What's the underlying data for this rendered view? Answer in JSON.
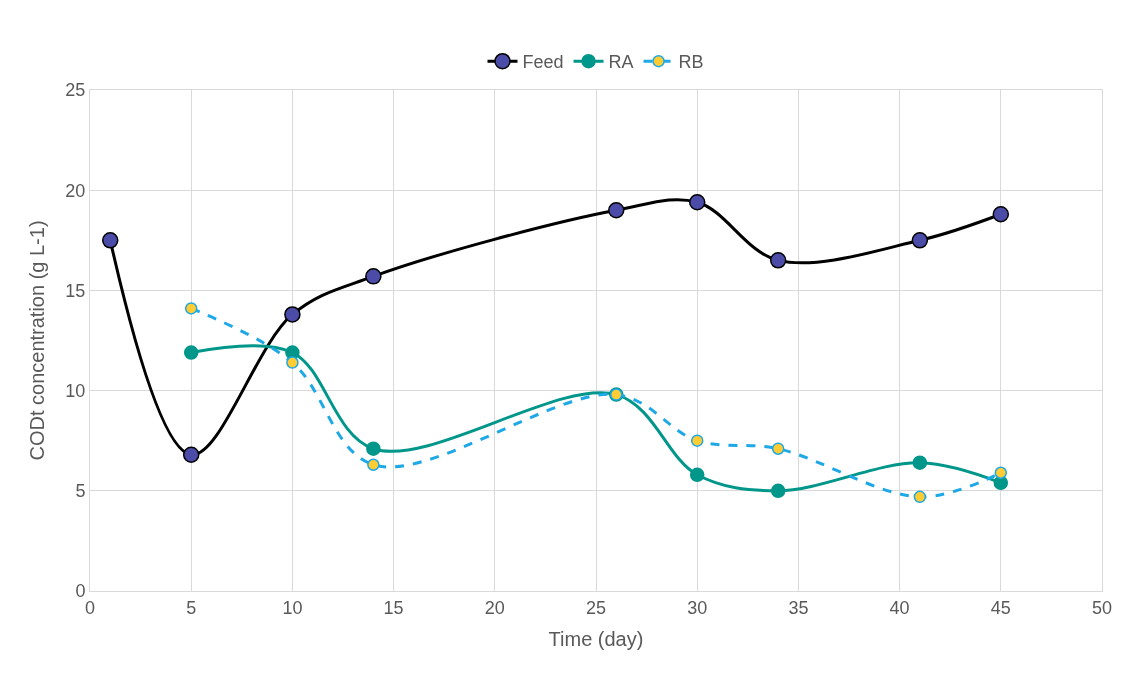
{
  "chart_data": {
    "type": "line",
    "xlabel": "Time (day)",
    "ylabel": "CODt concentration (g L-1)",
    "xlim": [
      0,
      50
    ],
    "xticks": [
      0,
      5,
      10,
      15,
      20,
      25,
      30,
      35,
      40,
      45,
      50
    ],
    "ylim": [
      0,
      25
    ],
    "yticks": [
      0,
      5,
      10,
      15,
      20,
      25
    ],
    "grid": true,
    "legend": "top",
    "marker": "circle",
    "series": [
      {
        "name": "Feed",
        "color": "#000000",
        "line_style": "solid",
        "x": [
          1,
          5,
          10,
          14,
          26,
          30,
          34,
          41,
          45
        ],
        "values": [
          17.5,
          6.8,
          13.8,
          15.7,
          19.0,
          19.4,
          16.5,
          17.5,
          18.8
        ]
      },
      {
        "name": "RA",
        "color": "#00968a",
        "line_style": "solid",
        "x": [
          5,
          10,
          14,
          26,
          30,
          34,
          41,
          45
        ],
        "values": [
          11.9,
          11.9,
          7.1,
          9.8,
          5.8,
          5.0,
          6.4,
          5.4
        ]
      },
      {
        "name": "RB",
        "color": "#1ea8e6",
        "line_style": "dashed",
        "x": [
          5,
          10,
          14,
          26,
          30,
          34,
          41,
          45
        ],
        "values": [
          14.1,
          11.4,
          6.3,
          9.8,
          7.5,
          7.1,
          4.7,
          5.9
        ]
      }
    ]
  }
}
